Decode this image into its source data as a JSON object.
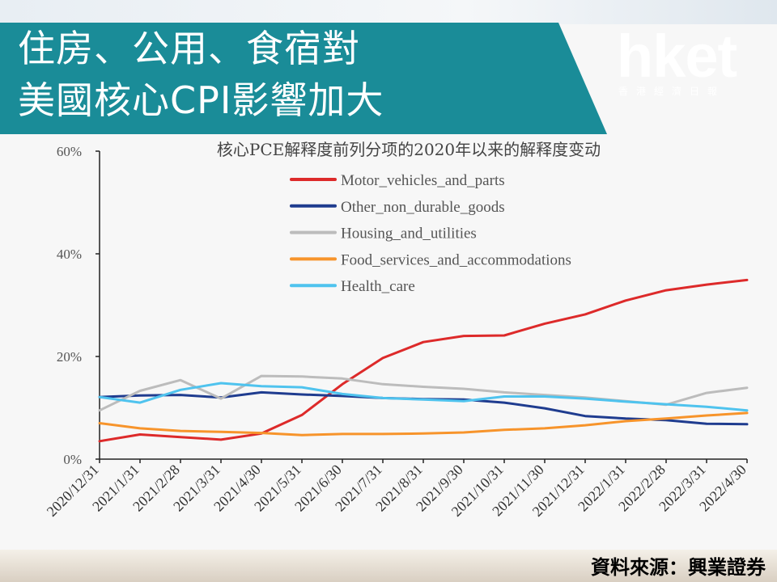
{
  "header": {
    "title_line1": "住房、公用、食宿對",
    "title_line2": "美國核心CPI影響加大",
    "banner_color": "#1a8c98"
  },
  "logo": {
    "main": "hket",
    "sub": "香港經濟日報"
  },
  "source": "資料來源：興業證券",
  "chart_data": {
    "type": "line",
    "title": "核心PCE解释度前列分项的2020年以来的解释度变动",
    "xlabel": "",
    "ylabel": "",
    "ylim": [
      0,
      60
    ],
    "yticks": [
      0,
      20,
      40,
      60
    ],
    "ytick_labels": [
      "0%",
      "20%",
      "40%",
      "60%"
    ],
    "legend_position": "top-center",
    "grid": false,
    "categories": [
      "2020/12/31",
      "2021/1/31",
      "2021/2/28",
      "2021/3/31",
      "2021/4/30",
      "2021/5/31",
      "2021/6/30",
      "2021/7/31",
      "2021/8/31",
      "2021/9/30",
      "2021/10/31",
      "2021/11/30",
      "2021/12/31",
      "2022/1/31",
      "2022/2/28",
      "2022/3/31",
      "2022/4/30"
    ],
    "series": [
      {
        "name": "Motor_vehicles_and_parts",
        "color": "#dd2a2a",
        "values": [
          3.5,
          4.8,
          4.3,
          3.8,
          5.0,
          8.6,
          14.6,
          19.7,
          22.8,
          24.0,
          24.1,
          26.4,
          28.2,
          30.9,
          32.9,
          34.0,
          34.9
        ]
      },
      {
        "name": "Other_non_durable_goods",
        "color": "#1f3c8f",
        "values": [
          12.1,
          12.4,
          12.5,
          12.0,
          13.0,
          12.6,
          12.3,
          11.9,
          11.7,
          11.6,
          11.0,
          9.9,
          8.4,
          7.9,
          7.6,
          6.9,
          6.8
        ]
      },
      {
        "name": "Housing_and_utilities",
        "color": "#bcbcbc",
        "values": [
          9.5,
          13.3,
          15.4,
          11.8,
          16.2,
          16.1,
          15.7,
          14.6,
          14.1,
          13.7,
          13.0,
          12.5,
          12.0,
          11.3,
          10.6,
          12.9,
          13.9
        ]
      },
      {
        "name": "Food_services_and_accommodations",
        "color": "#f7942b",
        "values": [
          7.0,
          6.0,
          5.5,
          5.3,
          5.1,
          4.7,
          4.9,
          4.9,
          5.0,
          5.2,
          5.7,
          6.0,
          6.6,
          7.4,
          7.9,
          8.5,
          9.0
        ]
      },
      {
        "name": "Health_care",
        "color": "#4fc3ee",
        "values": [
          12.1,
          11.0,
          13.5,
          14.8,
          14.2,
          14.0,
          12.7,
          11.9,
          11.6,
          11.3,
          12.2,
          12.2,
          11.8,
          11.2,
          10.7,
          10.2,
          9.5
        ]
      }
    ]
  }
}
